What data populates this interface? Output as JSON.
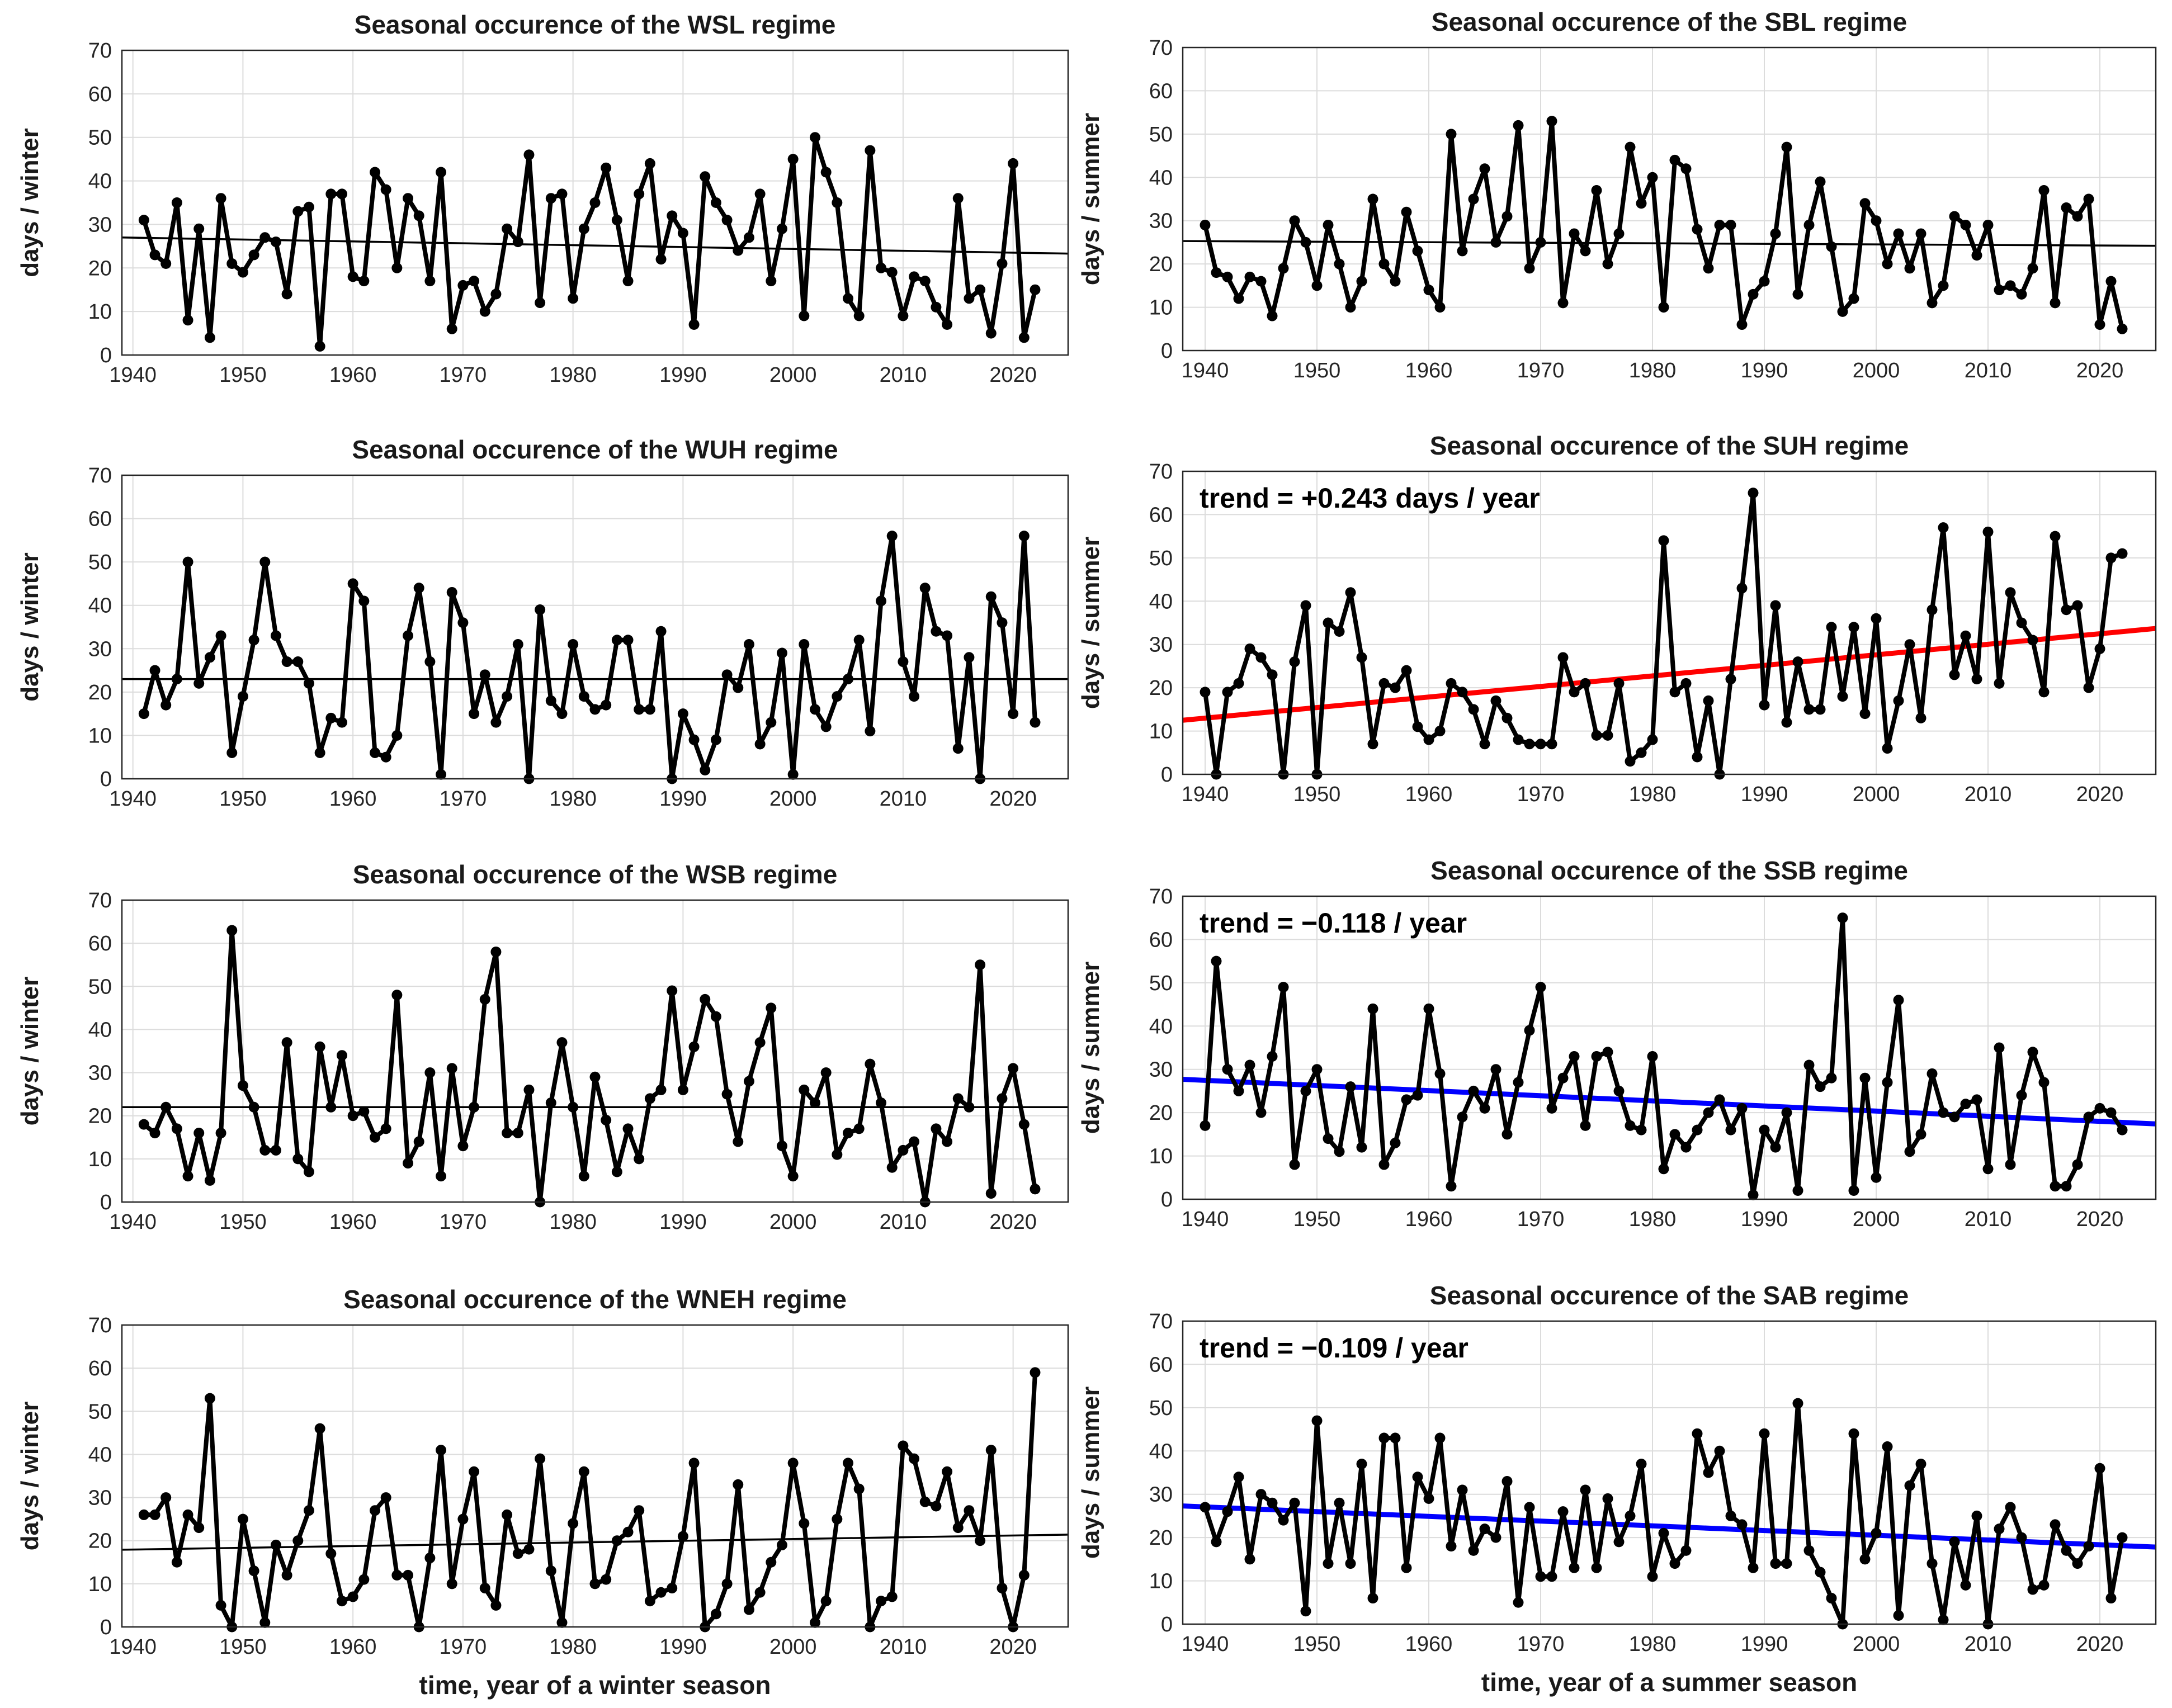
{
  "figure": {
    "shared_xlabel_winter": "time, year of a winter season",
    "shared_xlabel_summer": "time, year of a summer season"
  },
  "colors": {
    "series": "#000000",
    "trend_black": "#000000",
    "trend_red": "#ff0000",
    "trend_blue": "#0000ff",
    "grid": "#dcdcdc"
  },
  "chart_data": [
    {
      "id": "wsl",
      "type": "line",
      "title": "Seasonal occurence of the WSL regime",
      "ylabel": "days / winter",
      "xlabel": "",
      "xlim": [
        1939,
        2025
      ],
      "ylim": [
        0,
        70
      ],
      "xticks": [
        1940,
        1950,
        1960,
        1970,
        1980,
        1990,
        2000,
        2010,
        2020
      ],
      "yticks": [
        0,
        10,
        20,
        30,
        40,
        50,
        60,
        70
      ],
      "x_start": 1941,
      "values": [
        31,
        23,
        21,
        35,
        8,
        29,
        4,
        36,
        21,
        19,
        23,
        27,
        26,
        14,
        33,
        34,
        2,
        37,
        37,
        18,
        17,
        42,
        38,
        20,
        36,
        32,
        17,
        42,
        6,
        16,
        17,
        10,
        14,
        29,
        26,
        46,
        12,
        36,
        37,
        13,
        29,
        35,
        43,
        31,
        17,
        37,
        44,
        22,
        32,
        28,
        7,
        41,
        35,
        31,
        24,
        27,
        37,
        17,
        29,
        45,
        9,
        50,
        42,
        35,
        13,
        9,
        47,
        20,
        19,
        9,
        18,
        17,
        11,
        7,
        36,
        13,
        15,
        5,
        21,
        44,
        4,
        15
      ],
      "trend": {
        "x": [
          1939,
          2025
        ],
        "y": [
          27.0,
          23.3
        ],
        "color": "#000000"
      },
      "annotation": ""
    },
    {
      "id": "sbl",
      "type": "line",
      "title": "Seasonal occurence of the SBL regime",
      "ylabel": "days / summer",
      "xlabel": "",
      "xlim": [
        1938,
        2025
      ],
      "ylim": [
        0,
        70
      ],
      "xticks": [
        1940,
        1950,
        1960,
        1970,
        1980,
        1990,
        2000,
        2010,
        2020
      ],
      "yticks": [
        0,
        10,
        20,
        30,
        40,
        50,
        60,
        70
      ],
      "x_start": 1940,
      "values": [
        29,
        18,
        17,
        12,
        17,
        16,
        8,
        19,
        30,
        25,
        15,
        29,
        20,
        10,
        16,
        35,
        20,
        16,
        32,
        23,
        14,
        10,
        50,
        23,
        35,
        42,
        25,
        31,
        52,
        19,
        25,
        53,
        11,
        27,
        23,
        37,
        20,
        27,
        47,
        34,
        40,
        10,
        44,
        42,
        28,
        19,
        29,
        29,
        6,
        13,
        16,
        27,
        47,
        13,
        29,
        39,
        24,
        9,
        12,
        34,
        30,
        20,
        27,
        19,
        27,
        11,
        15,
        31,
        29,
        22,
        29,
        14,
        15,
        13,
        19,
        37,
        11,
        33,
        31,
        35,
        6,
        16,
        5
      ],
      "trend": {
        "x": [
          1938,
          2025
        ],
        "y": [
          25.3,
          24.2
        ],
        "color": "#000000"
      },
      "annotation": ""
    },
    {
      "id": "wuh",
      "type": "line",
      "title": "Seasonal occurence of the WUH regime",
      "ylabel": "days / winter",
      "xlabel": "",
      "xlim": [
        1939,
        2025
      ],
      "ylim": [
        0,
        70
      ],
      "xticks": [
        1940,
        1950,
        1960,
        1970,
        1980,
        1990,
        2000,
        2010,
        2020
      ],
      "yticks": [
        0,
        10,
        20,
        30,
        40,
        50,
        60,
        70
      ],
      "x_start": 1941,
      "values": [
        15,
        25,
        17,
        23,
        50,
        22,
        28,
        33,
        6,
        19,
        32,
        50,
        33,
        27,
        27,
        22,
        6,
        14,
        13,
        45,
        41,
        6,
        5,
        10,
        33,
        44,
        27,
        1,
        43,
        36,
        15,
        24,
        13,
        19,
        31,
        0,
        39,
        18,
        15,
        31,
        19,
        16,
        17,
        32,
        32,
        16,
        16,
        34,
        0,
        15,
        9,
        2,
        9,
        24,
        21,
        31,
        8,
        13,
        29,
        1,
        31,
        16,
        12,
        19,
        23,
        32,
        11,
        41,
        56,
        27,
        19,
        44,
        34,
        33,
        7,
        28,
        0,
        42,
        36,
        15,
        56,
        13
      ],
      "trend": {
        "x": [
          1939,
          2025
        ],
        "y": [
          23.0,
          23.0
        ],
        "color": "#000000"
      },
      "annotation": ""
    },
    {
      "id": "suh",
      "type": "line",
      "title": "Seasonal occurence of the SUH regime",
      "ylabel": "days / summer",
      "xlabel": "",
      "xlim": [
        1938,
        2025
      ],
      "ylim": [
        0,
        70
      ],
      "xticks": [
        1940,
        1950,
        1960,
        1970,
        1980,
        1990,
        2000,
        2010,
        2020
      ],
      "yticks": [
        0,
        10,
        20,
        30,
        40,
        50,
        60,
        70
      ],
      "x_start": 1940,
      "values": [
        19,
        0,
        19,
        21,
        29,
        27,
        23,
        0,
        26,
        39,
        0,
        35,
        33,
        42,
        27,
        7,
        21,
        20,
        24,
        11,
        8,
        10,
        21,
        19,
        15,
        7,
        17,
        13,
        8,
        7,
        7,
        7,
        27,
        19,
        21,
        9,
        9,
        21,
        3,
        5,
        8,
        54,
        19,
        21,
        4,
        17,
        0,
        22,
        43,
        65,
        16,
        39,
        12,
        26,
        15,
        15,
        34,
        18,
        34,
        14,
        36,
        6,
        17,
        30,
        13,
        38,
        57,
        23,
        32,
        22,
        56,
        21,
        42,
        35,
        31,
        19,
        55,
        38,
        39,
        20,
        29,
        50,
        51
      ],
      "trend": {
        "x": [
          1938,
          2025
        ],
        "y": [
          12.5,
          33.7
        ],
        "color": "#ff0000"
      },
      "annotation": "trend = +0.243 days / year"
    },
    {
      "id": "wsb",
      "type": "line",
      "title": "Seasonal occurence of the WSB regime",
      "ylabel": "days / winter",
      "xlabel": "",
      "xlim": [
        1939,
        2025
      ],
      "ylim": [
        0,
        70
      ],
      "xticks": [
        1940,
        1950,
        1960,
        1970,
        1980,
        1990,
        2000,
        2010,
        2020
      ],
      "yticks": [
        0,
        10,
        20,
        30,
        40,
        50,
        60,
        70
      ],
      "x_start": 1941,
      "values": [
        18,
        16,
        22,
        17,
        6,
        16,
        5,
        16,
        63,
        27,
        22,
        12,
        12,
        37,
        10,
        7,
        36,
        22,
        34,
        20,
        21,
        15,
        17,
        48,
        9,
        14,
        30,
        6,
        31,
        13,
        22,
        47,
        58,
        16,
        16,
        26,
        0,
        23,
        37,
        22,
        6,
        29,
        19,
        7,
        17,
        10,
        24,
        26,
        49,
        26,
        36,
        47,
        43,
        25,
        14,
        28,
        37,
        45,
        13,
        6,
        26,
        23,
        30,
        11,
        16,
        17,
        32,
        23,
        8,
        12,
        14,
        0,
        17,
        14,
        24,
        22,
        55,
        2,
        24,
        31,
        18,
        3
      ],
      "trend": {
        "x": [
          1939,
          2025
        ],
        "y": [
          22.0,
          22.0
        ],
        "color": "#000000"
      },
      "annotation": ""
    },
    {
      "id": "ssb",
      "type": "line",
      "title": "Seasonal occurence of the SSB regime",
      "ylabel": "days / summer",
      "xlabel": "",
      "xlim": [
        1938,
        2025
      ],
      "ylim": [
        0,
        70
      ],
      "xticks": [
        1940,
        1950,
        1960,
        1970,
        1980,
        1990,
        2000,
        2010,
        2020
      ],
      "yticks": [
        0,
        10,
        20,
        30,
        40,
        50,
        60,
        70
      ],
      "x_start": 1940,
      "values": [
        17,
        55,
        30,
        25,
        31,
        20,
        33,
        49,
        8,
        25,
        30,
        14,
        11,
        26,
        12,
        44,
        8,
        13,
        23,
        24,
        44,
        29,
        3,
        19,
        25,
        21,
        30,
        15,
        27,
        39,
        49,
        21,
        28,
        33,
        17,
        33,
        34,
        25,
        17,
        16,
        33,
        7,
        15,
        12,
        16,
        20,
        23,
        16,
        21,
        1,
        16,
        12,
        20,
        2,
        31,
        26,
        28,
        65,
        2,
        28,
        5,
        27,
        46,
        11,
        15,
        29,
        20,
        19,
        22,
        23,
        7,
        35,
        8,
        24,
        34,
        27,
        3,
        3,
        8,
        19,
        21,
        20,
        16
      ],
      "trend": {
        "x": [
          1938,
          2025
        ],
        "y": [
          27.7,
          17.4
        ],
        "color": "#0000ff"
      },
      "annotation": "trend = −0.118 / year"
    },
    {
      "id": "wneh",
      "type": "line",
      "title": "Seasonal occurence of the WNEH regime",
      "ylabel": "days / winter",
      "xlabel": "time, year of a winter season",
      "xlim": [
        1939,
        2025
      ],
      "ylim": [
        0,
        70
      ],
      "xticks": [
        1940,
        1950,
        1960,
        1970,
        1980,
        1990,
        2000,
        2010,
        2020
      ],
      "yticks": [
        0,
        10,
        20,
        30,
        40,
        50,
        60,
        70
      ],
      "x_start": 1941,
      "values": [
        26,
        26,
        30,
        15,
        26,
        23,
        53,
        5,
        0,
        25,
        13,
        1,
        19,
        12,
        20,
        27,
        46,
        17,
        6,
        7,
        11,
        27,
        30,
        12,
        12,
        0,
        16,
        41,
        10,
        25,
        36,
        9,
        5,
        26,
        17,
        18,
        39,
        13,
        1,
        24,
        36,
        10,
        11,
        20,
        22,
        27,
        6,
        8,
        9,
        21,
        38,
        0,
        3,
        10,
        33,
        4,
        8,
        15,
        19,
        38,
        24,
        1,
        6,
        25,
        38,
        32,
        0,
        6,
        7,
        42,
        39,
        29,
        28,
        36,
        23,
        27,
        20,
        41,
        9,
        0,
        12,
        59
      ],
      "trend": {
        "x": [
          1939,
          2025
        ],
        "y": [
          17.9,
          21.4
        ],
        "color": "#000000"
      },
      "annotation": ""
    },
    {
      "id": "sab",
      "type": "line",
      "title": "Seasonal occurence of the SAB regime",
      "ylabel": "days / summer",
      "xlabel": "time, year of a summer season",
      "xlim": [
        1938,
        2025
      ],
      "ylim": [
        0,
        70
      ],
      "xticks": [
        1940,
        1950,
        1960,
        1970,
        1980,
        1990,
        2000,
        2010,
        2020
      ],
      "yticks": [
        0,
        10,
        20,
        30,
        40,
        50,
        60,
        70
      ],
      "x_start": 1940,
      "values": [
        27,
        19,
        26,
        34,
        15,
        30,
        28,
        24,
        28,
        3,
        47,
        14,
        28,
        14,
        37,
        6,
        43,
        43,
        13,
        34,
        29,
        43,
        18,
        31,
        17,
        22,
        20,
        33,
        5,
        27,
        11,
        11,
        26,
        13,
        31,
        13,
        29,
        19,
        25,
        37,
        11,
        21,
        14,
        17,
        44,
        35,
        40,
        25,
        23,
        13,
        44,
        14,
        14,
        51,
        17,
        12,
        6,
        0,
        44,
        15,
        21,
        41,
        2,
        32,
        37,
        14,
        1,
        19,
        9,
        25,
        0,
        22,
        27,
        20,
        8,
        9,
        23,
        17,
        14,
        18,
        36,
        6,
        20
      ],
      "trend": {
        "x": [
          1938,
          2025
        ],
        "y": [
          27.3,
          17.8
        ],
        "color": "#0000ff"
      },
      "annotation": "trend = −0.109 / year"
    }
  ]
}
